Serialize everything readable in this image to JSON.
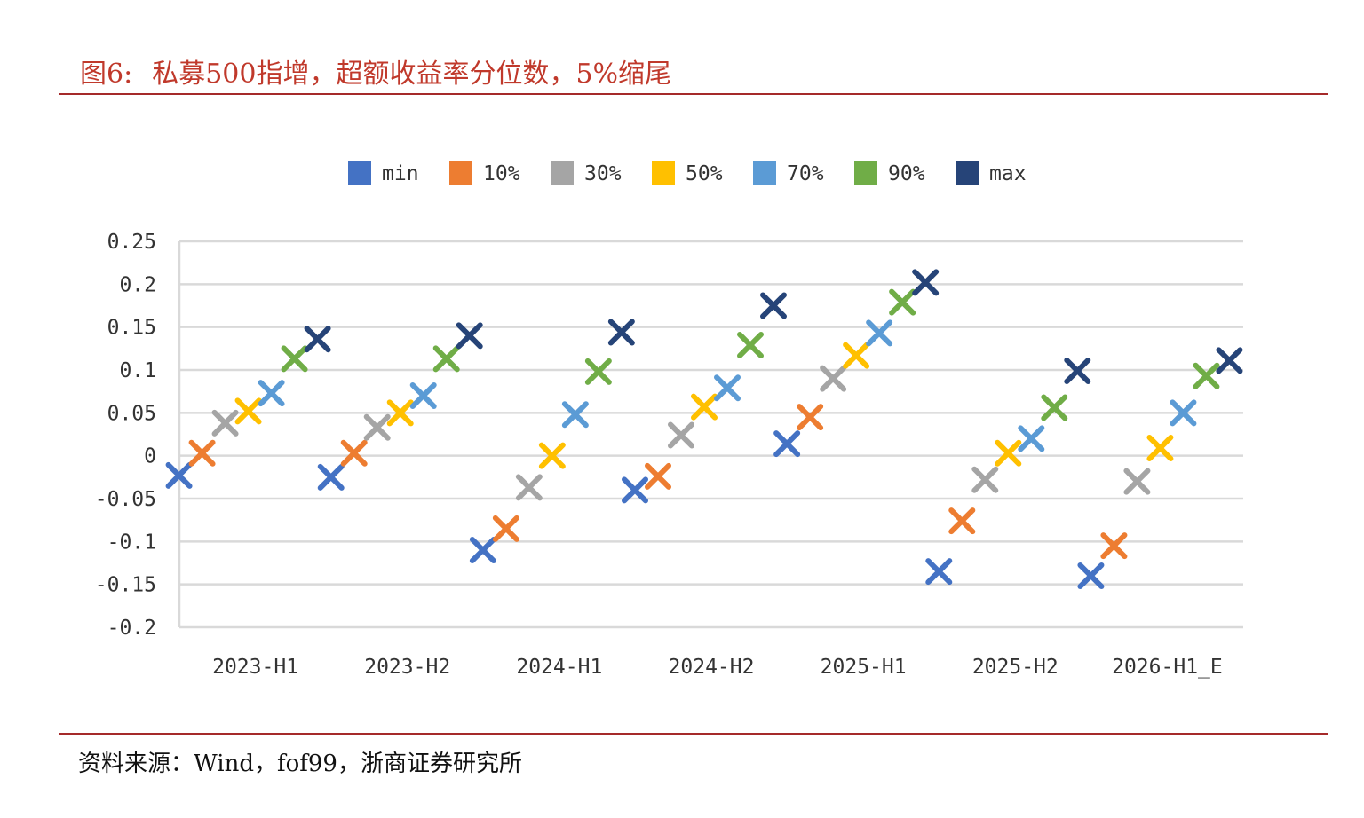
{
  "header": {
    "figure_label": "图6:",
    "title": "私募500指增，超额收益率分位数，5%缩尾"
  },
  "footer": {
    "source": "资料来源：Wind，fof99，浙商证券研究所"
  },
  "colors": {
    "accent": "#a52a2a",
    "title_text": "#c0392b",
    "grid": "#d9d9d9"
  },
  "chart_data": {
    "type": "scatter",
    "marker": "x",
    "title": "",
    "xlabel": "",
    "ylabel": "",
    "ylim": [
      -0.2,
      0.25
    ],
    "yticks": [
      0.25,
      0.2,
      0.15,
      0.1,
      0.05,
      0,
      -0.05,
      -0.1,
      -0.15,
      -0.2
    ],
    "ytick_labels": [
      "0.25",
      "0.2",
      "0.15",
      "0.1",
      "0.05",
      "0",
      "-0.05",
      "-0.1",
      "-0.15",
      "-0.2"
    ],
    "categories": [
      "2023-H1",
      "2023-H2",
      "2024-H1",
      "2024-H2",
      "2025-H1",
      "2025-H2",
      "2026-H1_E"
    ],
    "grid": true,
    "legend_position": "top",
    "series": [
      {
        "name": "min",
        "color": "#4472c4",
        "values": [
          -0.023,
          -0.025,
          -0.11,
          -0.04,
          0.014,
          -0.135,
          -0.14
        ]
      },
      {
        "name": "10%",
        "color": "#ed7d31",
        "values": [
          0.003,
          0.003,
          -0.085,
          -0.024,
          0.045,
          -0.076,
          -0.105
        ]
      },
      {
        "name": "30%",
        "color": "#a5a5a5",
        "values": [
          0.038,
          0.033,
          -0.037,
          0.024,
          0.09,
          -0.028,
          -0.03
        ]
      },
      {
        "name": "50%",
        "color": "#ffc000",
        "values": [
          0.052,
          0.05,
          0.0,
          0.057,
          0.117,
          0.003,
          0.009
        ]
      },
      {
        "name": "70%",
        "color": "#5b9bd5",
        "values": [
          0.073,
          0.07,
          0.048,
          0.079,
          0.143,
          0.02,
          0.05
        ]
      },
      {
        "name": "90%",
        "color": "#70ad47",
        "values": [
          0.113,
          0.113,
          0.098,
          0.129,
          0.179,
          0.056,
          0.093
        ]
      },
      {
        "name": "max",
        "color": "#264478",
        "values": [
          0.136,
          0.14,
          0.144,
          0.175,
          0.202,
          0.099,
          0.111
        ]
      }
    ]
  }
}
